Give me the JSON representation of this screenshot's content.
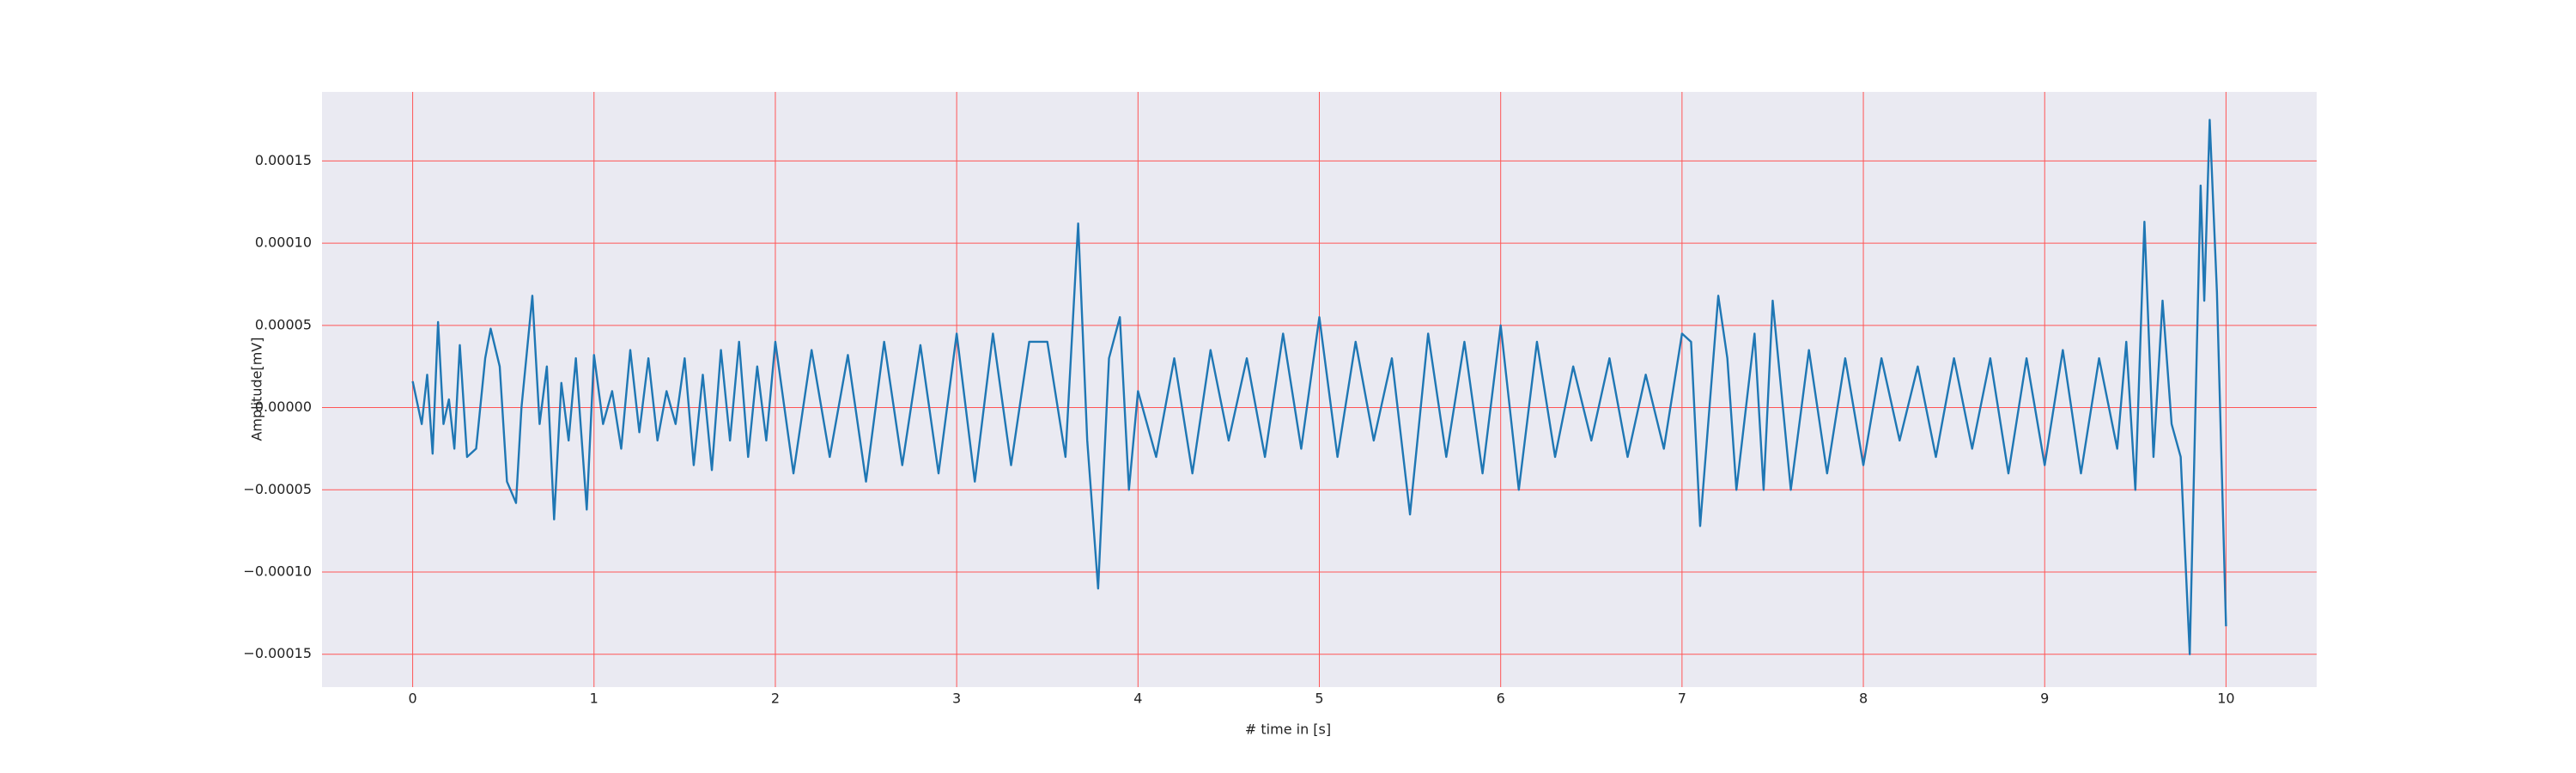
{
  "chart_data": {
    "type": "line",
    "xlabel": "# time in [s]",
    "ylabel": "Amplitude[mV]",
    "xlim": [
      -0.5,
      10.5
    ],
    "ylim": [
      -0.00017,
      0.000192
    ],
    "xticks": [
      0,
      1,
      2,
      3,
      4,
      5,
      6,
      7,
      8,
      9,
      10
    ],
    "yticks": [
      {
        "value": -0.00015,
        "label": "−0.00015"
      },
      {
        "value": -0.0001,
        "label": "−0.00010"
      },
      {
        "value": -5e-05,
        "label": "−0.00005"
      },
      {
        "value": 0,
        "label": "0.00000"
      },
      5e-05,
      {
        "value": 0.0001,
        "label": "0.00010"
      },
      0.00015
    ],
    "grid": true,
    "grid_color": "#ff5555",
    "background": "#eaeaf2",
    "series": [
      {
        "color": "#1f77b4",
        "x": [
          0,
          0.05,
          0.08,
          0.11,
          0.14,
          0.17,
          0.2,
          0.23,
          0.26,
          0.3,
          0.35,
          0.4,
          0.43,
          0.48,
          0.52,
          0.57,
          0.6,
          0.66,
          0.7,
          0.74,
          0.78,
          0.82,
          0.86,
          0.9,
          0.96,
          1.0,
          1.05,
          1.1,
          1.15,
          1.2,
          1.25,
          1.3,
          1.35,
          1.4,
          1.45,
          1.5,
          1.55,
          1.6,
          1.65,
          1.7,
          1.75,
          1.8,
          1.85,
          1.9,
          1.95,
          2.0,
          2.1,
          2.2,
          2.3,
          2.4,
          2.5,
          2.6,
          2.7,
          2.8,
          2.9,
          3.0,
          3.1,
          3.2,
          3.3,
          3.4,
          3.5,
          3.6,
          3.67,
          3.72,
          3.78,
          3.84,
          3.9,
          3.95,
          4.0,
          4.1,
          4.2,
          4.3,
          4.4,
          4.5,
          4.6,
          4.7,
          4.8,
          4.9,
          5.0,
          5.1,
          5.2,
          5.3,
          5.4,
          5.5,
          5.6,
          5.7,
          5.8,
          5.9,
          6.0,
          6.1,
          6.2,
          6.3,
          6.4,
          6.5,
          6.6,
          6.7,
          6.8,
          6.9,
          7.0,
          7.05,
          7.1,
          7.2,
          7.25,
          7.3,
          7.4,
          7.45,
          7.5,
          7.6,
          7.7,
          7.8,
          7.9,
          8.0,
          8.1,
          8.2,
          8.3,
          8.4,
          8.5,
          8.6,
          8.7,
          8.8,
          8.9,
          9.0,
          9.1,
          9.2,
          9.3,
          9.4,
          9.45,
          9.5,
          9.55,
          9.6,
          9.65,
          9.7,
          9.75,
          9.8,
          9.86,
          9.88,
          9.91,
          9.95,
          10.0
        ],
        "values": [
          1.6e-05,
          -1e-05,
          2e-05,
          -2.8e-05,
          5.2e-05,
          -1e-05,
          5e-06,
          -2.5e-05,
          3.8e-05,
          -3e-05,
          -2.5e-05,
          3e-05,
          4.8e-05,
          2.5e-05,
          -4.5e-05,
          -5.8e-05,
          0,
          6.8e-05,
          -1e-05,
          2.5e-05,
          -6.8e-05,
          1.5e-05,
          -2e-05,
          3e-05,
          -6.2e-05,
          3.2e-05,
          -1e-05,
          1e-05,
          -2.5e-05,
          3.5e-05,
          -1.5e-05,
          3e-05,
          -2e-05,
          1e-05,
          -1e-05,
          3e-05,
          -3.5e-05,
          2e-05,
          -3.8e-05,
          3.5e-05,
          -2e-05,
          4e-05,
          -3e-05,
          2.5e-05,
          -2e-05,
          4e-05,
          -4e-05,
          3.5e-05,
          -3e-05,
          3.2e-05,
          -4.5e-05,
          4e-05,
          -3.5e-05,
          3.8e-05,
          -4e-05,
          4.5e-05,
          -4.5e-05,
          4.5e-05,
          -3.5e-05,
          4e-05,
          4e-05,
          -3e-05,
          0.000112,
          -2e-05,
          -0.00011,
          3e-05,
          5.5e-05,
          -5e-05,
          1e-05,
          -3e-05,
          3e-05,
          -4e-05,
          3.5e-05,
          -2e-05,
          3e-05,
          -3e-05,
          4.5e-05,
          -2.5e-05,
          5.5e-05,
          -3e-05,
          4e-05,
          -2e-05,
          3e-05,
          -6.5e-05,
          4.5e-05,
          -3e-05,
          4e-05,
          -4e-05,
          5e-05,
          -5e-05,
          4e-05,
          -3e-05,
          2.5e-05,
          -2e-05,
          3e-05,
          -3e-05,
          2e-05,
          -2.5e-05,
          4.5e-05,
          4e-05,
          -7.2e-05,
          6.8e-05,
          3e-05,
          -5e-05,
          4.5e-05,
          -5e-05,
          6.5e-05,
          -5e-05,
          3.5e-05,
          -4e-05,
          3e-05,
          -3.5e-05,
          3e-05,
          -2e-05,
          2.5e-05,
          -3e-05,
          3e-05,
          -2.5e-05,
          3e-05,
          -4e-05,
          3e-05,
          -3.5e-05,
          3.5e-05,
          -4e-05,
          3e-05,
          -2.5e-05,
          4e-05,
          -5e-05,
          0.000113,
          -3e-05,
          6.5e-05,
          -1e-05,
          -3e-05,
          -0.00015,
          0.000135,
          6.5e-05,
          0.000175,
          7e-05,
          -0.000133
        ]
      }
    ]
  }
}
